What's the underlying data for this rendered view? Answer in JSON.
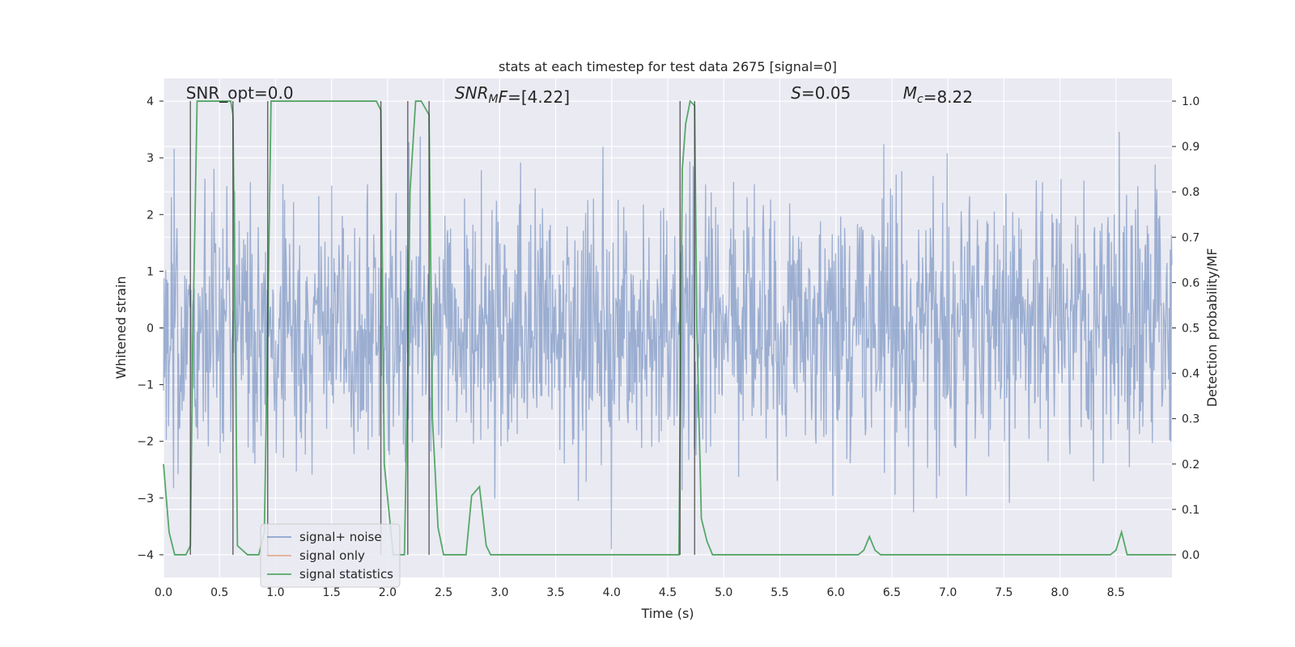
{
  "chart_data": {
    "type": "line",
    "title": "stats at each timestep for test data 2675 [signal=0]",
    "xlabel": "Time (s)",
    "ylabel_left": "Whitened strain",
    "ylabel_right": "Detection probability/MF",
    "xlim": [
      0.0,
      9.0
    ],
    "ylim_left": [
      -4.4,
      4.4
    ],
    "ylim_right": [
      -0.05,
      1.05
    ],
    "x_ticks": [
      0.0,
      0.5,
      1.0,
      1.5,
      2.0,
      2.5,
      3.0,
      3.5,
      4.0,
      4.5,
      5.0,
      5.5,
      6.0,
      6.5,
      7.0,
      7.5,
      8.0,
      8.5
    ],
    "x_tick_labels": [
      "0.0",
      "0.5",
      "1.0",
      "1.5",
      "2.0",
      "2.5",
      "3.0",
      "3.5",
      "4.0",
      "4.5",
      "5.0",
      "5.5",
      "6.0",
      "6.5",
      "7.0",
      "7.5",
      "8.0",
      "8.5"
    ],
    "y_left_ticks": [
      -4,
      -3,
      -2,
      -1,
      0,
      1,
      2,
      3,
      4
    ],
    "y_left_tick_labels": [
      "−4",
      "−3",
      "−2",
      "−1",
      "0",
      "1",
      "2",
      "3",
      "4"
    ],
    "y_right_ticks": [
      0.0,
      0.1,
      0.2,
      0.3,
      0.4,
      0.5,
      0.6,
      0.7,
      0.8,
      0.9,
      1.0
    ],
    "y_right_tick_labels": [
      "0.0",
      "0.1",
      "0.2",
      "0.3",
      "0.4",
      "0.5",
      "0.6",
      "0.7",
      "0.8",
      "0.9",
      "1.0"
    ],
    "grid": true,
    "legend_position": "bottom-left",
    "annotations": [
      {
        "x": 0.2,
        "text": "SNR_opt=0.0",
        "parts": [
          {
            "t": "SNR_opt=0.0"
          }
        ]
      },
      {
        "x": 2.6,
        "text": "SNR_MF=[4.22]",
        "parts": [
          {
            "t": "SNR",
            "i": true
          },
          {
            "t": "M",
            "i": true,
            "sub": true
          },
          {
            "t": "F",
            "i": true
          },
          {
            "t": "=[4.22]"
          }
        ]
      },
      {
        "x": 5.6,
        "text": "S=0.05",
        "parts": [
          {
            "t": "S",
            "i": true
          },
          {
            "t": "=0.05"
          }
        ]
      },
      {
        "x": 6.6,
        "text": "M_c=8.22",
        "parts": [
          {
            "t": "M",
            "i": true
          },
          {
            "t": "c",
            "i": true,
            "sub": true
          },
          {
            "t": "=8.22"
          }
        ]
      }
    ],
    "vertical_markers_x": [
      0.24,
      0.62,
      0.93,
      1.94,
      2.18,
      2.37,
      4.61,
      4.74
    ],
    "series": [
      {
        "name": "signal+ noise",
        "color": "#4c72b0",
        "axis": "left",
        "sample_count": 1800,
        "seed": 2675,
        "noise_sigma": 1.15,
        "abs_max": 3.9
      },
      {
        "name": "signal only",
        "color": "#dd8452",
        "axis": "left",
        "x": [],
        "y": []
      },
      {
        "name": "signal statistics",
        "color": "#55a868",
        "axis": "right",
        "x": [
          0.0,
          0.05,
          0.1,
          0.2,
          0.24,
          0.26,
          0.3,
          0.35,
          0.45,
          0.6,
          0.62,
          0.66,
          0.75,
          0.85,
          0.9,
          0.93,
          0.96,
          1.0,
          1.2,
          1.5,
          1.8,
          1.9,
          1.94,
          1.97,
          2.05,
          2.15,
          2.18,
          2.2,
          2.25,
          2.3,
          2.37,
          2.4,
          2.45,
          2.5,
          2.55,
          2.6,
          2.7,
          2.75,
          2.82,
          2.88,
          2.92,
          3.0,
          3.5,
          4.0,
          4.5,
          4.6,
          4.63,
          4.66,
          4.7,
          4.74,
          4.76,
          4.8,
          4.85,
          4.9,
          4.95,
          5.0,
          5.5,
          6.0,
          6.2,
          6.25,
          6.3,
          6.35,
          6.4,
          6.45,
          7.0,
          7.5,
          8.0,
          8.45,
          8.5,
          8.55,
          8.6,
          8.65,
          9.0
        ],
        "y": [
          0.2,
          0.05,
          0.0,
          0.0,
          0.02,
          0.45,
          1.0,
          1.0,
          1.0,
          1.0,
          0.97,
          0.02,
          0.0,
          0.0,
          0.05,
          0.5,
          1.0,
          1.0,
          1.0,
          1.0,
          1.0,
          1.0,
          0.98,
          0.2,
          0.0,
          0.0,
          0.4,
          0.8,
          1.0,
          1.0,
          0.97,
          0.3,
          0.06,
          0.0,
          0.0,
          0.0,
          0.0,
          0.13,
          0.15,
          0.02,
          0.0,
          0.0,
          0.0,
          0.0,
          0.0,
          0.0,
          0.85,
          0.95,
          1.0,
          0.99,
          0.5,
          0.08,
          0.03,
          0.0,
          0.0,
          0.0,
          0.0,
          0.0,
          0.0,
          0.01,
          0.04,
          0.01,
          0.0,
          0.0,
          0.0,
          0.0,
          0.0,
          0.0,
          0.01,
          0.05,
          0.0,
          0.0,
          0.0
        ]
      }
    ]
  }
}
